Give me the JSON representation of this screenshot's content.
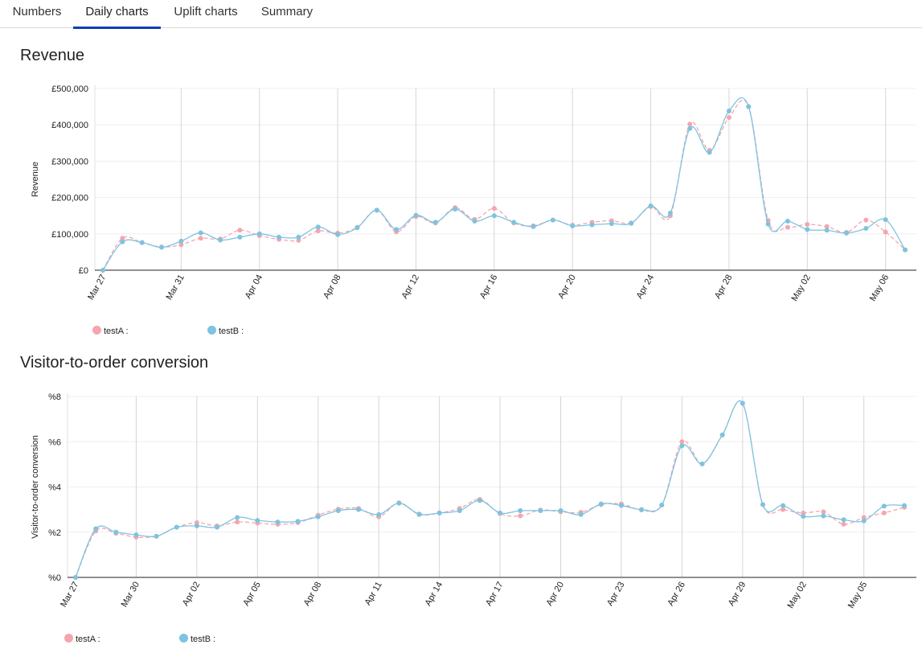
{
  "tabs": [
    {
      "label": "Numbers",
      "active": false
    },
    {
      "label": "Daily charts",
      "active": true
    },
    {
      "label": "Uplift charts",
      "active": false
    },
    {
      "label": "Summary",
      "active": false
    }
  ],
  "colors": {
    "testA": "#f4a6ae",
    "testB": "#7ec3df",
    "tab_active": "#0b3fb5",
    "grid": "#d6d6d6"
  },
  "charts": {
    "revenue": {
      "title": "Revenue",
      "legend": [
        {
          "label": "testA :",
          "color": "#f4a6ae"
        },
        {
          "label": "testB :",
          "color": "#7ec3df"
        }
      ]
    },
    "conversion": {
      "title": "Visitor-to-order conversion",
      "legend": [
        {
          "label": "testA :",
          "color": "#f4a6ae"
        },
        {
          "label": "testB :",
          "color": "#7ec3df"
        }
      ]
    }
  },
  "chart_data": [
    {
      "type": "line",
      "title": "Revenue",
      "xlabel": "",
      "ylabel": "Revenue",
      "ylim": [
        0,
        500000
      ],
      "yticks": [
        "£0",
        "£100,000",
        "£200,000",
        "£300,000",
        "£400,000",
        "£500,000"
      ],
      "xticks": [
        "Mar 27",
        "Mar 31",
        "Apr 04",
        "Apr 08",
        "Apr 12",
        "Apr 16",
        "Apr 20",
        "Apr 24",
        "Apr 28",
        "May 02",
        "May 06"
      ],
      "x": [
        "Mar 27",
        "Mar 28",
        "Mar 29",
        "Mar 30",
        "Mar 31",
        "Apr 01",
        "Apr 02",
        "Apr 03",
        "Apr 04",
        "Apr 05",
        "Apr 06",
        "Apr 07",
        "Apr 08",
        "Apr 09",
        "Apr 10",
        "Apr 11",
        "Apr 12",
        "Apr 13",
        "Apr 14",
        "Apr 15",
        "Apr 16",
        "Apr 17",
        "Apr 18",
        "Apr 19",
        "Apr 20",
        "Apr 21",
        "Apr 22",
        "Apr 23",
        "Apr 24",
        "Apr 25",
        "Apr 26",
        "Apr 27",
        "Apr 28",
        "Apr 29",
        "Apr 30",
        "May 01",
        "May 02",
        "May 03",
        "May 04",
        "May 05",
        "May 06",
        "May 07"
      ],
      "series": [
        {
          "name": "testA",
          "values": [
            0,
            88000,
            76000,
            64000,
            70000,
            88000,
            86000,
            110000,
            95000,
            85000,
            82000,
            108000,
            102000,
            118000,
            165000,
            106000,
            148000,
            130000,
            172000,
            140000,
            170000,
            130000,
            122000,
            138000,
            124000,
            132000,
            136000,
            130000,
            175000,
            150000,
            402000,
            330000,
            420000,
            450000,
            137000,
            118000,
            126000,
            120000,
            104000,
            138000,
            105000,
            56000
          ]
        },
        {
          "name": "testB",
          "values": [
            0,
            78000,
            76000,
            63000,
            80000,
            103000,
            83000,
            91000,
            100000,
            91000,
            91000,
            119000,
            98000,
            117000,
            165000,
            112000,
            151000,
            132000,
            168000,
            135000,
            150000,
            132000,
            120000,
            138000,
            122000,
            125000,
            128000,
            129000,
            177000,
            157000,
            390000,
            324000,
            438000,
            450000,
            127000,
            135000,
            112000,
            110000,
            102000,
            115000,
            139000,
            56000
          ]
        }
      ]
    },
    {
      "type": "line",
      "title": "Visitor-to-order conversion",
      "xlabel": "",
      "ylabel": "Visitor-to-order conversion",
      "ylim": [
        0,
        8
      ],
      "yticks": [
        "%0",
        "%2",
        "%4",
        "%6",
        "%8"
      ],
      "xticks": [
        "Mar 27",
        "Mar 30",
        "Apr 02",
        "Apr 05",
        "Apr 08",
        "Apr 11",
        "Apr 14",
        "Apr 17",
        "Apr 20",
        "Apr 23",
        "Apr 26",
        "Apr 29",
        "May 02",
        "May 05"
      ],
      "x": [
        "Mar 27",
        "Mar 28",
        "Mar 29",
        "Mar 30",
        "Mar 31",
        "Apr 01",
        "Apr 02",
        "Apr 03",
        "Apr 04",
        "Apr 05",
        "Apr 06",
        "Apr 07",
        "Apr 08",
        "Apr 09",
        "Apr 10",
        "Apr 11",
        "Apr 12",
        "Apr 13",
        "Apr 14",
        "Apr 15",
        "Apr 16",
        "Apr 17",
        "Apr 18",
        "Apr 19",
        "Apr 20",
        "Apr 21",
        "Apr 22",
        "Apr 23",
        "Apr 24",
        "Apr 25",
        "Apr 26",
        "Apr 27",
        "Apr 28",
        "Apr 29",
        "Apr 30",
        "May 01",
        "May 02",
        "May 03",
        "May 04",
        "May 05",
        "May 06",
        "May 07"
      ],
      "series": [
        {
          "name": "testA",
          "values": [
            0,
            2.05,
            1.95,
            1.78,
            1.82,
            2.22,
            2.42,
            2.28,
            2.45,
            2.4,
            2.35,
            2.42,
            2.75,
            3.02,
            3.05,
            2.68,
            3.3,
            2.78,
            2.85,
            3.05,
            3.45,
            2.82,
            2.72,
            2.98,
            2.9,
            2.88,
            3.22,
            3.25,
            2.98,
            3.2,
            6.0,
            5.02,
            6.3,
            7.7,
            3.22,
            3.0,
            2.85,
            2.9,
            2.35,
            2.65,
            2.85,
            3.1
          ]
        },
        {
          "name": "testB",
          "values": [
            0,
            2.15,
            2.0,
            1.88,
            1.82,
            2.22,
            2.28,
            2.22,
            2.65,
            2.52,
            2.45,
            2.48,
            2.68,
            2.95,
            3.0,
            2.78,
            3.28,
            2.8,
            2.85,
            2.95,
            3.4,
            2.85,
            2.95,
            2.95,
            2.95,
            2.78,
            3.25,
            3.18,
            3.0,
            3.2,
            5.82,
            5.02,
            6.3,
            7.7,
            3.22,
            3.18,
            2.7,
            2.72,
            2.55,
            2.5,
            3.15,
            3.18
          ]
        }
      ]
    }
  ]
}
